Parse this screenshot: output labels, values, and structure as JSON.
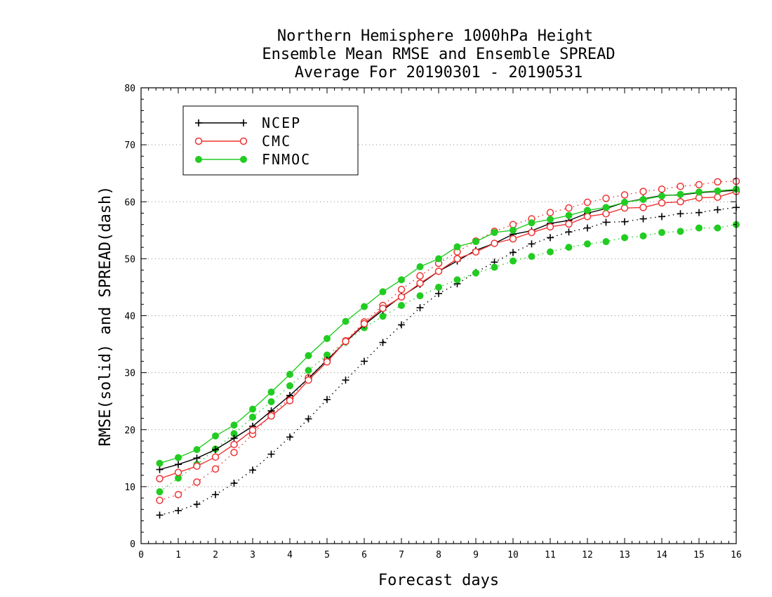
{
  "chart_data": {
    "type": "line",
    "title_lines": [
      "Northern Hemisphere 1000hPa Height",
      "Ensemble Mean RMSE and Ensemble SPREAD",
      "Average For 20190301 - 20190531"
    ],
    "xlabel": "Forecast days",
    "ylabel": "RMSE(solid) and SPREAD(dash)",
    "xlim": [
      0,
      16
    ],
    "ylim": [
      0,
      80
    ],
    "xticks": [
      0,
      1,
      2,
      3,
      4,
      5,
      6,
      7,
      8,
      9,
      10,
      11,
      12,
      13,
      14,
      15,
      16
    ],
    "yticks": [
      0,
      10,
      20,
      30,
      40,
      50,
      60,
      70,
      80
    ],
    "grid": "horizontal dotted",
    "legend_position": "top-left",
    "x": [
      0.5,
      1,
      1.5,
      2,
      2.5,
      3,
      3.5,
      4,
      4.5,
      5,
      5.5,
      6,
      6.5,
      7,
      7.5,
      8,
      8.5,
      9,
      9.5,
      10,
      10.5,
      11,
      11.5,
      12,
      12.5,
      13,
      13.5,
      14,
      14.5,
      15,
      15.5,
      16
    ],
    "series": [
      {
        "name": "NCEP",
        "color": "#000000",
        "marker": "plus",
        "rmse": [
          13.0,
          13.9,
          15.0,
          16.5,
          18.5,
          20.6,
          23.3,
          26.0,
          29.0,
          32.2,
          35.4,
          38.4,
          41.0,
          43.4,
          45.5,
          47.8,
          49.6,
          51.5,
          52.7,
          54.3,
          54.9,
          56.2,
          56.7,
          58.0,
          58.8,
          59.9,
          60.5,
          61.1,
          61.2,
          61.6,
          61.8,
          62.0
        ],
        "spread": [
          5.0,
          5.8,
          6.9,
          8.6,
          10.6,
          12.9,
          15.7,
          18.7,
          21.9,
          25.3,
          28.7,
          32.0,
          35.3,
          38.4,
          41.4,
          43.9,
          45.6,
          47.6,
          49.4,
          51.1,
          52.6,
          53.7,
          54.7,
          55.4,
          56.4,
          56.5,
          57.0,
          57.4,
          57.9,
          58.1,
          58.6,
          59.0
        ]
      },
      {
        "name": "CMC",
        "color": "#ee3333",
        "marker": "open-circle",
        "rmse": [
          11.4,
          12.5,
          13.6,
          15.2,
          17.4,
          19.9,
          22.4,
          25.1,
          28.7,
          31.9,
          35.5,
          38.6,
          41.3,
          43.3,
          45.7,
          47.8,
          50.0,
          51.2,
          52.7,
          53.5,
          54.6,
          55.6,
          56.1,
          57.4,
          57.9,
          58.9,
          59.0,
          59.8,
          60.0,
          60.7,
          60.8,
          61.8
        ],
        "spread": [
          7.6,
          8.6,
          10.8,
          13.1,
          16.0,
          19.2,
          22.7,
          25.5,
          29.1,
          32.3,
          35.6,
          38.9,
          41.8,
          44.6,
          47.0,
          49.2,
          51.2,
          53.1,
          54.8,
          56.0,
          57.0,
          58.1,
          58.9,
          59.9,
          60.6,
          61.2,
          61.8,
          62.2,
          62.7,
          63.0,
          63.5,
          63.6
        ]
      },
      {
        "name": "FNMOC",
        "color": "#22cc22",
        "marker": "filled-circle",
        "rmse": [
          14.1,
          15.1,
          16.5,
          18.9,
          20.8,
          23.6,
          26.6,
          29.7,
          33.0,
          36.0,
          39.0,
          41.6,
          44.2,
          46.3,
          48.6,
          50.0,
          52.1,
          53.0,
          54.6,
          55.0,
          56.3,
          56.9,
          57.6,
          58.5,
          59.0,
          59.9,
          60.4,
          61.0,
          61.3,
          61.7,
          61.9,
          62.2
        ],
        "spread": [
          9.1,
          11.5,
          13.9,
          16.6,
          19.3,
          22.2,
          24.9,
          27.7,
          30.4,
          33.1,
          35.4,
          37.9,
          39.9,
          41.8,
          43.5,
          45.0,
          46.3,
          47.5,
          48.5,
          49.6,
          50.4,
          51.2,
          52.0,
          52.6,
          53.0,
          53.7,
          54.0,
          54.6,
          54.8,
          55.4,
          55.4,
          56.0
        ]
      }
    ]
  }
}
